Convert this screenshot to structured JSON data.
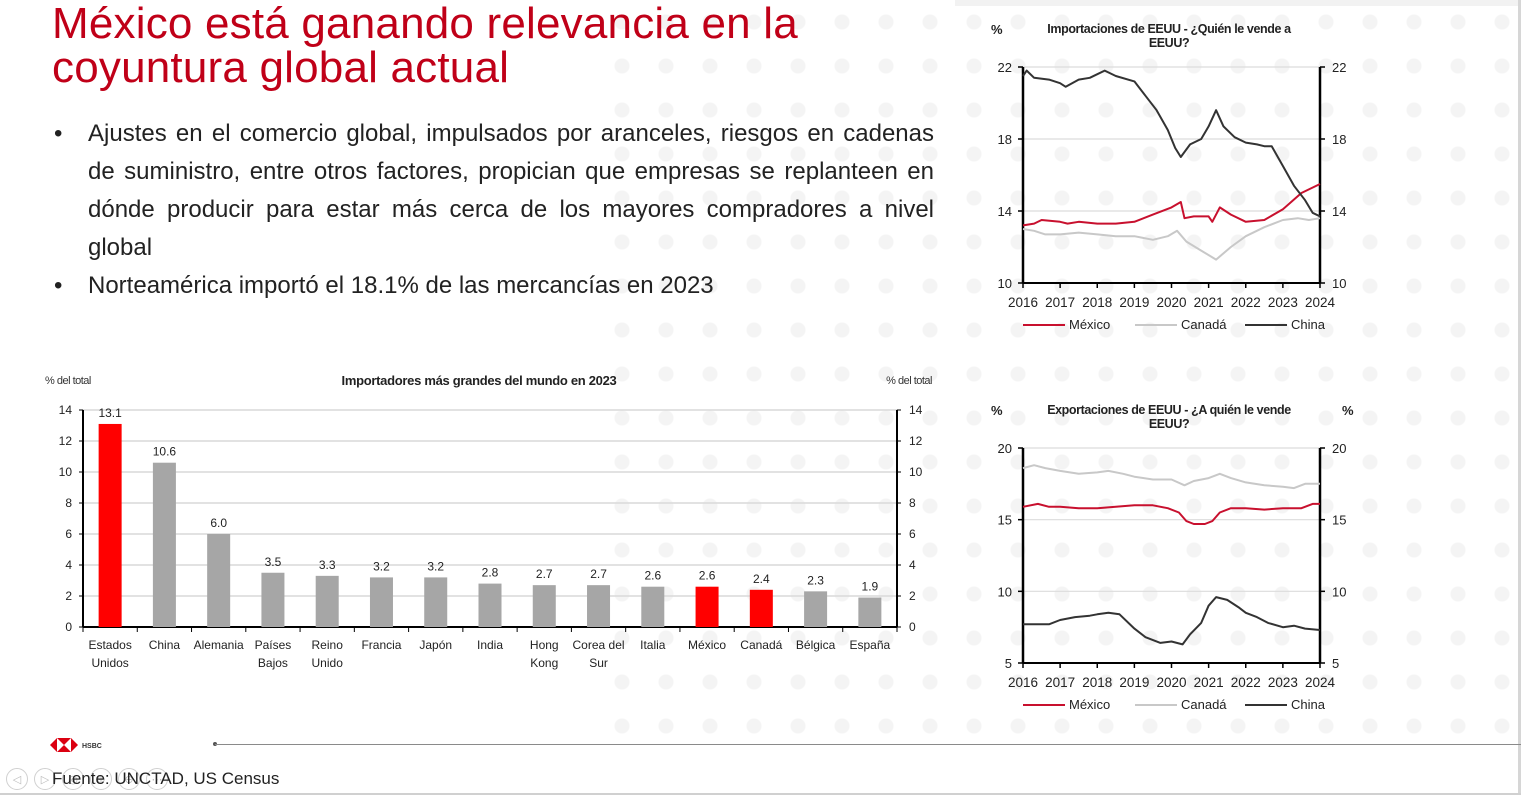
{
  "slide": {
    "title": "México está ganando relevancia en la coyuntura global actual",
    "bullets": [
      "Ajustes en el comercio global, impulsados por aranceles, riesgos en cadenas de suministro, entre otros factores, propician que empresas se replanteen en dónde producir para estar más cerca de los mayores compradores a nivel global",
      "Norteamérica importó el 18.1% de las mercancías en 2023"
    ],
    "source": "Fuente: UNCTAD, US Census",
    "logo_text": "HSBC",
    "nav": [
      "◁",
      "▷",
      "◎",
      "⊕",
      "⊖",
      "⋯"
    ]
  },
  "colors": {
    "accent": "#c00018",
    "highlight_bar": "#ff0000",
    "bar_gray": "#a6a6a6",
    "mexico_line": "#c8102e",
    "canada_line": "#c8c8c8",
    "china_line": "#333333"
  },
  "chart_data": [
    {
      "id": "importers",
      "type": "bar",
      "title": "Importadores más grandes del mundo en 2023",
      "ylabel_left": "% del total",
      "ylabel_right": "% del total",
      "ylim": [
        0,
        14
      ],
      "yticks": [
        0,
        2,
        4,
        6,
        8,
        10,
        12,
        14
      ],
      "grid": true,
      "categories": [
        [
          "Estados",
          "Unidos"
        ],
        [
          "China"
        ],
        [
          "Alemania"
        ],
        [
          "Países",
          "Bajos"
        ],
        [
          "Reino",
          "Unido"
        ],
        [
          "Francia"
        ],
        [
          "Japón"
        ],
        [
          "India"
        ],
        [
          "Hong",
          "Kong"
        ],
        [
          "Corea del",
          "Sur"
        ],
        [
          "Italia"
        ],
        [
          "México"
        ],
        [
          "Canadá"
        ],
        [
          "Bélgica"
        ],
        [
          "España"
        ]
      ],
      "values": [
        13.1,
        10.6,
        6.0,
        3.5,
        3.3,
        3.2,
        3.2,
        2.8,
        2.7,
        2.7,
        2.6,
        2.6,
        2.4,
        2.3,
        1.9
      ],
      "labels": [
        "13.1",
        "10.6",
        "6.0",
        "3.5",
        "3.3",
        "3.2",
        "3.2",
        "2.8",
        "2.7",
        "2.7",
        "2.6",
        "2.6",
        "2.4",
        "2.3",
        "1.9"
      ],
      "highlighted": [
        true,
        false,
        false,
        false,
        false,
        false,
        false,
        false,
        false,
        false,
        false,
        true,
        true,
        false,
        false
      ]
    },
    {
      "id": "us-imports",
      "type": "line",
      "title": [
        "Importaciones de EEUU - ¿Quién le vende a",
        "EEUU?"
      ],
      "ylabel_left": "%",
      "ylabel_right": "",
      "ylim": [
        10,
        22
      ],
      "yticks": [
        10,
        14,
        18,
        22
      ],
      "xlim": [
        2016,
        2024
      ],
      "xticks": [
        2016,
        2017,
        2018,
        2019,
        2020,
        2021,
        2022,
        2023,
        2024
      ],
      "grid": true,
      "legend": "bottom",
      "series": [
        {
          "name": "México",
          "color_key": "mexico_line",
          "x": [
            2016.0,
            2016.3,
            2016.5,
            2017.0,
            2017.2,
            2017.5,
            2018.0,
            2018.5,
            2019.0,
            2019.5,
            2020.0,
            2020.25,
            2020.35,
            2020.6,
            2021.0,
            2021.1,
            2021.3,
            2021.6,
            2022.0,
            2022.5,
            2023.0,
            2023.5,
            2024.0
          ],
          "y": [
            13.2,
            13.3,
            13.5,
            13.4,
            13.3,
            13.4,
            13.3,
            13.3,
            13.4,
            13.8,
            14.2,
            14.5,
            13.6,
            13.7,
            13.7,
            13.4,
            14.2,
            13.8,
            13.4,
            13.5,
            14.1,
            15.0,
            15.5
          ]
        },
        {
          "name": "Canadá",
          "color_key": "canada_line",
          "x": [
            2016.0,
            2016.3,
            2016.6,
            2017.0,
            2017.5,
            2018.0,
            2018.5,
            2019.0,
            2019.5,
            2019.9,
            2020.15,
            2020.4,
            2020.8,
            2021.2,
            2021.6,
            2022.0,
            2022.5,
            2023.0,
            2023.4,
            2023.7,
            2024.0
          ],
          "y": [
            13.0,
            12.9,
            12.7,
            12.7,
            12.8,
            12.7,
            12.6,
            12.6,
            12.4,
            12.6,
            12.9,
            12.3,
            11.8,
            11.3,
            12.0,
            12.6,
            13.1,
            13.5,
            13.6,
            13.5,
            13.6
          ]
        },
        {
          "name": "China",
          "color_key": "china_line",
          "x": [
            2016.0,
            2016.1,
            2016.3,
            2016.7,
            2017.0,
            2017.15,
            2017.5,
            2017.8,
            2018.0,
            2018.2,
            2018.5,
            2019.0,
            2019.3,
            2019.6,
            2019.9,
            2020.1,
            2020.25,
            2020.5,
            2020.8,
            2021.0,
            2021.2,
            2021.4,
            2021.7,
            2022.0,
            2022.3,
            2022.5,
            2022.7,
            2023.0,
            2023.3,
            2023.6,
            2023.8,
            2024.0
          ],
          "y": [
            21.5,
            21.8,
            21.4,
            21.3,
            21.1,
            20.9,
            21.3,
            21.4,
            21.6,
            21.8,
            21.5,
            21.2,
            20.4,
            19.6,
            18.5,
            17.5,
            17.0,
            17.7,
            18.0,
            18.7,
            19.6,
            18.7,
            18.1,
            17.8,
            17.7,
            17.6,
            17.6,
            16.5,
            15.4,
            14.6,
            13.9,
            13.7
          ]
        }
      ]
    },
    {
      "id": "us-exports",
      "type": "line",
      "title": [
        "Exportaciones de EEUU - ¿A quién le vende",
        "EEUU?"
      ],
      "ylabel_left": "%",
      "ylabel_right": "%",
      "ylim": [
        5,
        20
      ],
      "yticks": [
        5,
        10,
        15,
        20
      ],
      "xlim": [
        2016,
        2024
      ],
      "xticks": [
        2016,
        2017,
        2018,
        2019,
        2020,
        2021,
        2022,
        2023,
        2024
      ],
      "grid": true,
      "legend": "bottom",
      "series": [
        {
          "name": "México",
          "color_key": "mexico_line",
          "x": [
            2016.0,
            2016.4,
            2016.7,
            2017.0,
            2017.5,
            2018.0,
            2018.5,
            2019.0,
            2019.5,
            2019.9,
            2020.2,
            2020.4,
            2020.6,
            2020.9,
            2021.1,
            2021.3,
            2021.6,
            2022.0,
            2022.5,
            2023.0,
            2023.5,
            2023.8,
            2024.0
          ],
          "y": [
            15.9,
            16.1,
            15.9,
            15.9,
            15.8,
            15.8,
            15.9,
            16.0,
            16.0,
            15.8,
            15.5,
            14.9,
            14.7,
            14.7,
            14.9,
            15.5,
            15.8,
            15.8,
            15.7,
            15.8,
            15.8,
            16.1,
            16.1
          ]
        },
        {
          "name": "Canadá",
          "color_key": "canada_line",
          "x": [
            2016.0,
            2016.3,
            2016.6,
            2017.0,
            2017.5,
            2018.0,
            2018.3,
            2018.7,
            2019.0,
            2019.5,
            2020.0,
            2020.35,
            2020.6,
            2021.0,
            2021.3,
            2021.6,
            2022.0,
            2022.5,
            2023.0,
            2023.3,
            2023.6,
            2024.0
          ],
          "y": [
            18.6,
            18.8,
            18.6,
            18.4,
            18.2,
            18.3,
            18.4,
            18.2,
            18.0,
            17.8,
            17.8,
            17.4,
            17.7,
            17.9,
            18.2,
            17.9,
            17.6,
            17.4,
            17.3,
            17.2,
            17.5,
            17.5
          ]
        },
        {
          "name": "China",
          "color_key": "china_line",
          "x": [
            2016.0,
            2016.4,
            2016.7,
            2017.0,
            2017.4,
            2017.8,
            2018.0,
            2018.3,
            2018.6,
            2019.0,
            2019.3,
            2019.7,
            2020.0,
            2020.3,
            2020.5,
            2020.8,
            2021.0,
            2021.2,
            2021.5,
            2021.8,
            2022.0,
            2022.3,
            2022.6,
            2023.0,
            2023.3,
            2023.6,
            2024.0
          ],
          "y": [
            7.7,
            7.7,
            7.7,
            8.0,
            8.2,
            8.3,
            8.4,
            8.5,
            8.4,
            7.4,
            6.8,
            6.4,
            6.5,
            6.3,
            7.0,
            7.8,
            9.0,
            9.6,
            9.4,
            8.9,
            8.5,
            8.2,
            7.8,
            7.5,
            7.6,
            7.4,
            7.3
          ]
        }
      ]
    }
  ]
}
